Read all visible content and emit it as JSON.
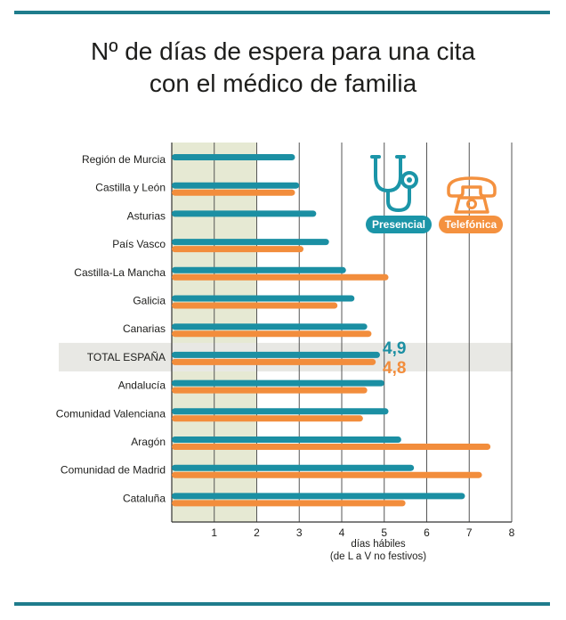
{
  "title": {
    "line1": "Nº de días de espera para una cita",
    "line2": "con el médico de familia"
  },
  "legend": {
    "presencial": "Presencial",
    "telefonica": "Telefónica"
  },
  "axis": {
    "xlabel_line1": "días hábiles",
    "xlabel_line2": "(de L a V no festivos)"
  },
  "colors": {
    "presencial": "#1b8fa3",
    "telefonica": "#f28d3c",
    "highlight_band": "#e6e9d3",
    "rule": "#1f7c8c"
  },
  "chart_data": {
    "type": "bar",
    "orientation": "horizontal",
    "title": "Nº de días de espera para una cita con el médico de familia",
    "xlabel": "días hábiles (de L a V no festivos)",
    "xlim": [
      0,
      8
    ],
    "xticks": [
      1,
      2,
      3,
      4,
      5,
      6,
      7,
      8
    ],
    "categories": [
      "Región de Murcia",
      "Castilla y León",
      "Asturias",
      "País Vasco",
      "Castilla-La Mancha",
      "Galicia",
      "Canarias",
      "TOTAL ESPAÑA",
      "Andalucía",
      "Comunidad Valenciana",
      "Aragón",
      "Comunidad de Madrid",
      "Cataluña"
    ],
    "highlight_category": "TOTAL ESPAÑA",
    "series": [
      {
        "name": "Presencial",
        "values": [
          2.9,
          3.0,
          3.4,
          3.7,
          4.1,
          4.3,
          4.6,
          4.9,
          5.0,
          5.1,
          5.4,
          5.7,
          6.9
        ]
      },
      {
        "name": "Telefónica",
        "values": [
          null,
          2.9,
          null,
          3.1,
          5.1,
          3.9,
          4.7,
          4.8,
          4.6,
          4.5,
          7.5,
          7.3,
          5.5
        ]
      }
    ],
    "annotations": [
      {
        "text": "4,9",
        "series": "Presencial",
        "category": "TOTAL ESPAÑA"
      },
      {
        "text": "4,8",
        "series": "Telefónica",
        "category": "TOTAL ESPAÑA"
      }
    ]
  }
}
